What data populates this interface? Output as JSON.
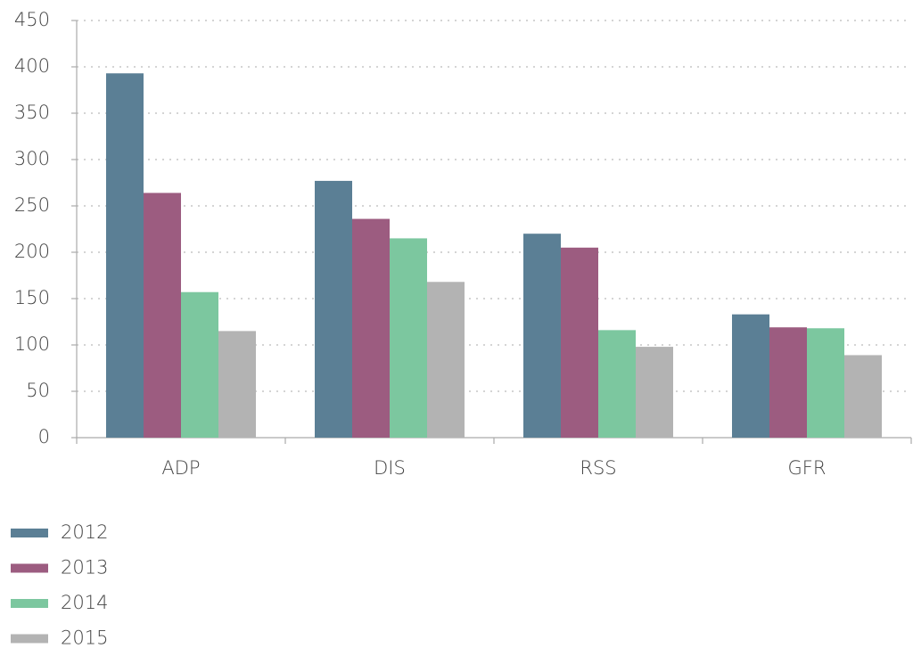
{
  "chart_data": {
    "type": "bar",
    "categories": [
      "ADP",
      "DIS",
      "RSS",
      "GFR"
    ],
    "series": [
      {
        "name": "2012",
        "color": "#5b7f95",
        "values": [
          393,
          277,
          220,
          133
        ]
      },
      {
        "name": "2013",
        "color": "#9c5c80",
        "values": [
          264,
          236,
          205,
          119
        ]
      },
      {
        "name": "2014",
        "color": "#7cc79f",
        "values": [
          157,
          215,
          116,
          118
        ]
      },
      {
        "name": "2015",
        "color": "#b3b3b3",
        "values": [
          115,
          168,
          98,
          89
        ]
      }
    ],
    "ylim": [
      0,
      450
    ],
    "yticks": [
      0,
      50,
      100,
      150,
      200,
      250,
      300,
      350,
      400,
      450
    ],
    "grid": true
  }
}
